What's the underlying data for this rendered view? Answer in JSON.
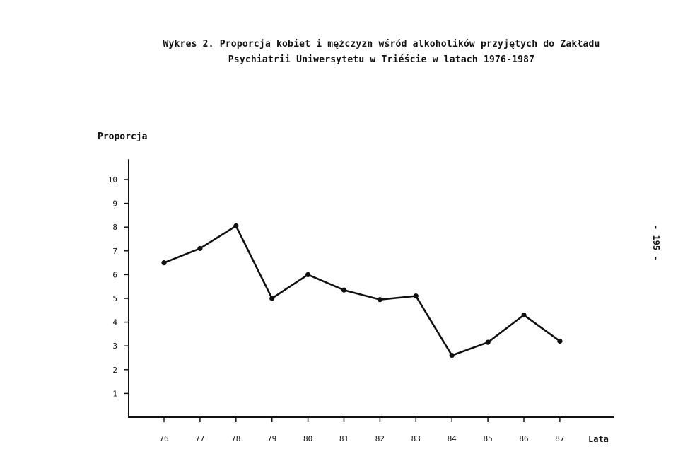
{
  "title_line1": "Wykres 2. Proporcja kobiet i mężczyzn wśród alkoholików przyjętych do Zakładu",
  "title_line2": "Psychiatrii Uniwersytetu w Triéście w latach 1976-1987",
  "page_number": "- 195 -",
  "chart_data": {
    "type": "line",
    "title": "Wykres 2. Proporcja kobiet i mężczyzn wśród alkoholików przyjętych do Zakładu Psychiatrii Uniwersytetu w Triéście w latach 1976-1987",
    "ylabel": "Proporcja",
    "xlabel": "Lata",
    "categories": [
      "76",
      "77",
      "78",
      "79",
      "80",
      "81",
      "82",
      "83",
      "84",
      "85",
      "86",
      "87"
    ],
    "values": [
      6.5,
      7.1,
      8.05,
      5.0,
      6.0,
      5.35,
      4.95,
      5.1,
      2.6,
      3.15,
      4.3,
      3.2
    ],
    "yticks": [
      "1",
      "2",
      "3",
      "4",
      "5",
      "6",
      "7",
      "8",
      "9",
      "10"
    ],
    "ylim": [
      0,
      10.5
    ],
    "grid": false,
    "legend": "none",
    "line_color": "#111111"
  }
}
